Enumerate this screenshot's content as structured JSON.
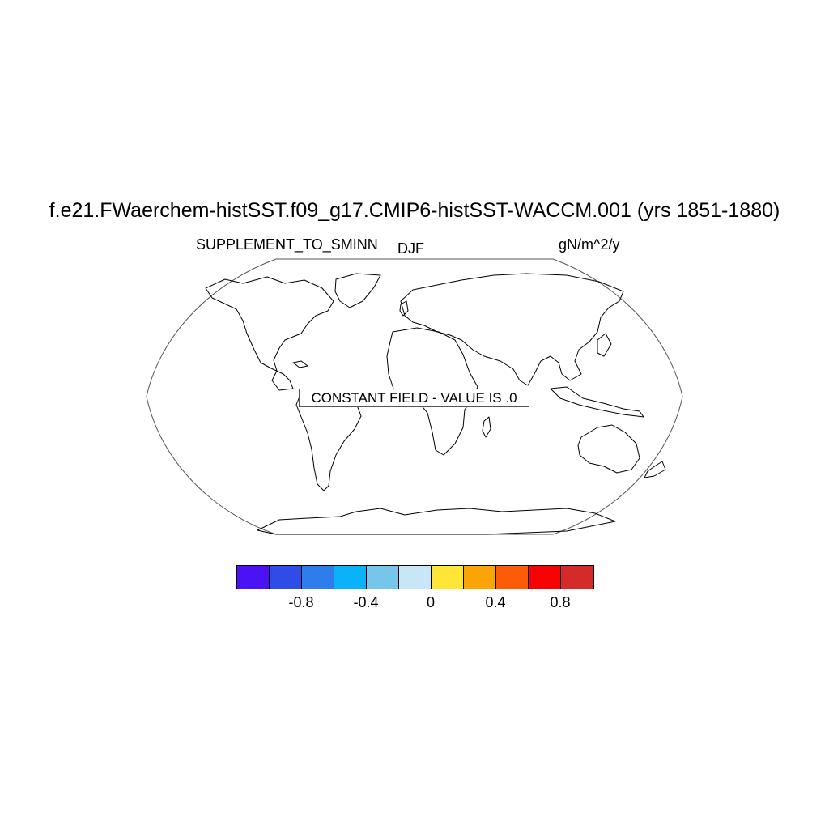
{
  "title": "f.e21.FWaerchem-histSST.f09_g17.CMIP6-histSST-WACCM.001 (yrs 1851-1880)",
  "left_label": "SUPPLEMENT_TO_SMINN",
  "center_label": "DJF",
  "right_label": "gN/m^2/y",
  "message": "CONSTANT FIELD - VALUE IS .0",
  "colorbar": {
    "colors": [
      "#4a12f5",
      "#2f4de6",
      "#2e7ded",
      "#0cb2f8",
      "#76c6ec",
      "#c8e6f6",
      "#fde636",
      "#fba407",
      "#fc5b07",
      "#f70203",
      "#d42a2a"
    ],
    "tick_labels": [
      "-0.8",
      "-0.4",
      "0",
      "0.4",
      "0.8"
    ],
    "tick_values": [
      -0.8,
      -0.4,
      0,
      0.4,
      0.8
    ]
  },
  "chart_data": {
    "type": "heatmap",
    "projection": "Robinson",
    "variable": "SUPPLEMENT_TO_SMINN",
    "season": "DJF",
    "units": "gN/m^2/y",
    "field_value": 0.0,
    "levels": [
      -1.0,
      -0.8,
      -0.6,
      -0.4,
      -0.2,
      0,
      0.2,
      0.4,
      0.6,
      0.8,
      1.0
    ],
    "coastlines": true
  }
}
